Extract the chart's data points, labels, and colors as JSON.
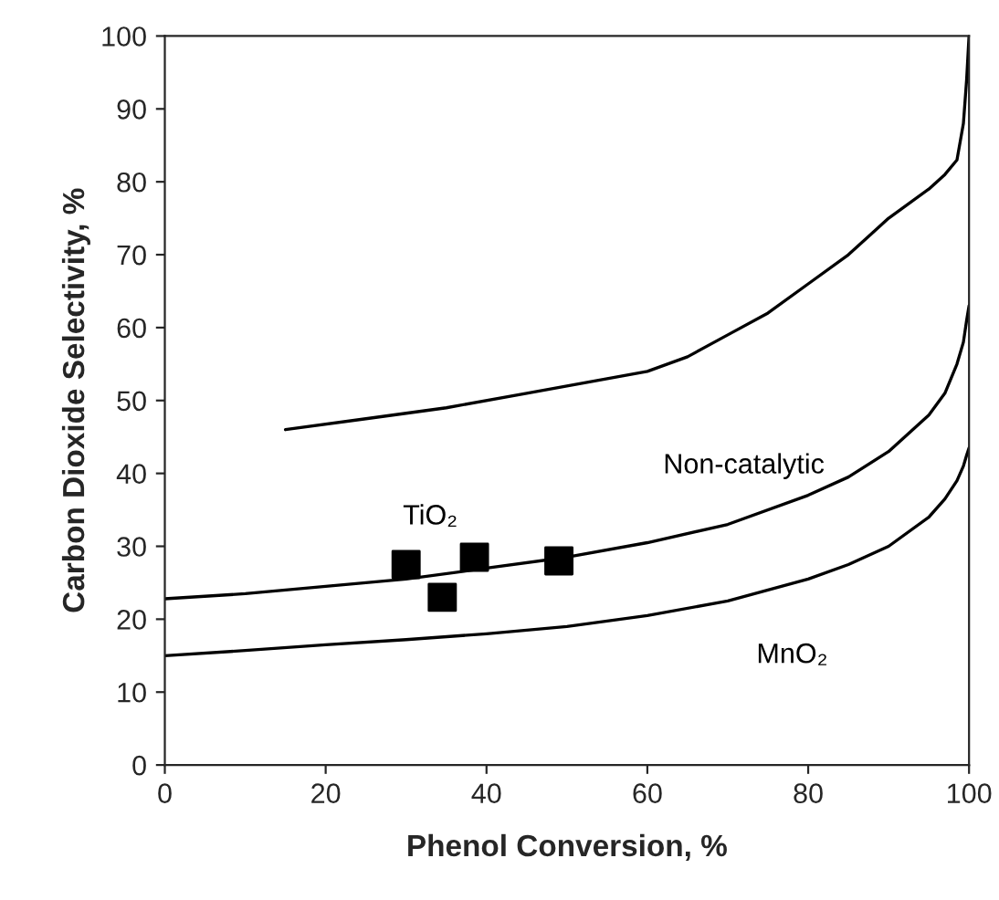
{
  "chart_data": {
    "type": "line",
    "xlabel": "Phenol Conversion, %",
    "ylabel": "Carbon Dioxide Selectivity, %",
    "xlim": [
      0,
      100
    ],
    "ylim": [
      0,
      100
    ],
    "xticks": [
      0,
      20,
      40,
      60,
      80,
      100
    ],
    "yticks": [
      0,
      10,
      20,
      30,
      40,
      50,
      60,
      70,
      80,
      90,
      100
    ],
    "grid": false,
    "legend": false,
    "series": [
      {
        "color": "#000000",
        "x": [
          15,
          25,
          35,
          45,
          55,
          60,
          65,
          70,
          75,
          80,
          85,
          90,
          95,
          97,
          98.5,
          99.3,
          99.7,
          100
        ],
        "values": [
          46,
          47.5,
          49,
          51,
          53,
          54,
          56,
          59,
          62,
          66,
          70,
          75,
          79,
          81,
          83,
          88,
          94,
          100
        ]
      },
      {
        "name": "Non-catalytic",
        "color": "#000000",
        "x": [
          0,
          10,
          20,
          30,
          40,
          50,
          60,
          70,
          80,
          85,
          90,
          95,
          97,
          98.5,
          99.3,
          99.7,
          100
        ],
        "values": [
          22.8,
          23.5,
          24.5,
          25.5,
          27,
          28.5,
          30.5,
          33,
          37,
          39.5,
          43,
          48,
          51,
          55,
          58,
          61,
          63
        ]
      },
      {
        "name": "MnO₂",
        "color": "#000000",
        "x": [
          0,
          10,
          20,
          30,
          40,
          50,
          60,
          70,
          80,
          85,
          90,
          95,
          97,
          98.5,
          99.3,
          99.7,
          100
        ],
        "values": [
          15,
          15.7,
          16.5,
          17.2,
          18,
          19,
          20.5,
          22.5,
          25.5,
          27.5,
          30,
          34,
          36.5,
          39,
          41,
          42.5,
          43.5
        ]
      },
      {
        "name": "TiO₂",
        "type": "scatter",
        "color": "#000000",
        "marker": "square",
        "x": [
          30,
          34.5,
          38.5,
          49
        ],
        "values": [
          27.5,
          23,
          28.5,
          28
        ]
      }
    ]
  }
}
